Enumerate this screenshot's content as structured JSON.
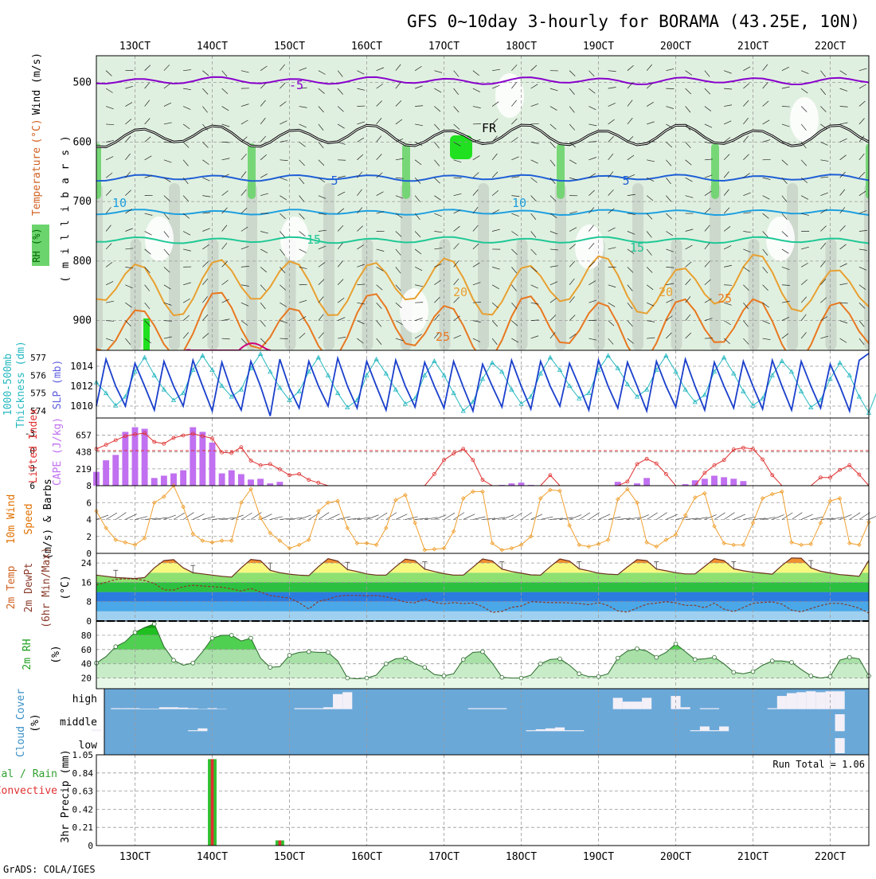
{
  "title": "GFS 0~10day 3-hourly for BORAMA (43.25E, 10N)",
  "footer": "GrADS: COLA/IGES",
  "run_total_label": "Run Total = 1.06",
  "colors": {
    "temp_purple": "#8800cc",
    "temp_blue": "#1f5fd6",
    "temp_cyan": "#1ea0e0",
    "temp_teal": "#1fc896",
    "temp_orange": "#e8a030",
    "temp_dark_orange": "#e87820",
    "temp_magenta": "#d0007a",
    "rh_light": "#e0f0e0",
    "rh_gray": "#c8d4c8",
    "rh_green": "#6cd46c",
    "rh_bright": "#20e020",
    "slp": "#1a3fcc",
    "thickness": "#26b8c0",
    "lifted_index": "#e03030",
    "cape": "#c070f0",
    "wind": "#f0a030",
    "cloud_bg": "#6aa8d8",
    "precip_total": "#30c030",
    "precip_conv": "#e03030"
  },
  "chart_data": [
    {
      "type": "contour",
      "name": "upper_air",
      "title": "Wind (m/s), Temperature (°C), RH (%)",
      "ylabel": "millibars",
      "ylabel_parts": [
        {
          "text": "Wind (m/s)",
          "color": "#000000"
        },
        {
          "text": "Temperature (°C)",
          "color": "#d06020"
        },
        {
          "text": "RH (%)",
          "color": "#30a030"
        }
      ],
      "ylabel_top": "Wind (m/s)",
      "ylabel_temp": "Temperature",
      "ylabel_unit": "(°C)",
      "ylabel_rh": "RH (%)",
      "ylabel_mb": "( m i l l i b a r s )",
      "ylim": [
        950,
        455
      ],
      "yticks": [
        500,
        600,
        700,
        800,
        900
      ],
      "contour_labels": [
        {
          "text": "-5",
          "color": "#8800cc"
        },
        {
          "text": "5",
          "color": "#1f5fd6"
        },
        {
          "text": "5",
          "color": "#1f5fd6"
        },
        {
          "text": "10",
          "color": "#1ea0e0"
        },
        {
          "text": "10",
          "color": "#1ea0e0"
        },
        {
          "text": "15",
          "color": "#1fc896"
        },
        {
          "text": "15",
          "color": "#1fc896"
        },
        {
          "text": "20",
          "color": "#e8a030"
        },
        {
          "text": "20",
          "color": "#e8a030"
        },
        {
          "text": "25",
          "color": "#e87820"
        },
        {
          "text": "25",
          "color": "#e87820"
        },
        {
          "text": "FR",
          "color": "#000000"
        }
      ],
      "isotherms": [
        {
          "temp": -5,
          "mean_p": 497,
          "amp": 8
        },
        {
          "temp": 0,
          "mean_p": 590,
          "amp": 24
        },
        {
          "temp": 5,
          "mean_p": 660,
          "amp": 7
        },
        {
          "temp": 10,
          "mean_p": 718,
          "amp": 6
        },
        {
          "temp": 15,
          "mean_p": 765,
          "amp": 7
        },
        {
          "temp": 20,
          "mean_p": 840,
          "amp": 40
        },
        {
          "temp": 25,
          "mean_p": 910,
          "amp": 45
        }
      ]
    },
    {
      "type": "line",
      "name": "slp_thickness",
      "ylabel_left": "1000-500mb Thickness (dm)",
      "ylabel_left_a": "1000-500mb",
      "ylabel_left_b": "Thickness (dm)",
      "ylabel_right": "SLP (mb)",
      "yticks_thick": [
        574,
        575,
        576,
        577
      ],
      "yticks_slp": [
        1010,
        1012,
        1014
      ],
      "thick_range": [
        573.6,
        577.4
      ],
      "slp_range": [
        1008.8,
        1015.6
      ],
      "slp": [
        1010,
        1014.7,
        1012,
        1010,
        1014.3,
        1012,
        1009.6,
        1014.5,
        1012,
        1010,
        1014.6,
        1012,
        1009.5,
        1014.4,
        1011.5,
        1009.6,
        1014.5,
        1012,
        1009,
        1014.7,
        1011.8,
        1009.8,
        1014.5,
        1012,
        1010,
        1014.8,
        1012,
        1009.8,
        1014.5,
        1012,
        1009.6,
        1014.6,
        1012,
        1009.9,
        1014.4,
        1012,
        1009.8,
        1014.5,
        1011.9,
        1009.5,
        1014.2,
        1012,
        1009.9,
        1014.6,
        1012,
        1009.7,
        1014.5,
        1012,
        1010,
        1014.3,
        1012,
        1009.6,
        1014.6,
        1012,
        1009.8,
        1014.4,
        1012,
        1009.5,
        1014.5,
        1012,
        1009.9,
        1014.7,
        1012,
        1009.6,
        1014.4,
        1012,
        1009.8,
        1014.5,
        1012,
        1009.7,
        1014.6,
        1012,
        1009.6,
        1014.5,
        1012,
        1009.8,
        1014.2,
        1012,
        1009.5,
        1014.6,
        1015.3
      ],
      "thickness": [
        575.6,
        575,
        574.3,
        574.8,
        576.2,
        577,
        576,
        575.2,
        574.6,
        575,
        576.3,
        577.1,
        576.3,
        575.4,
        574.8,
        575.2,
        576.4,
        577.2,
        576.2,
        575.3,
        574.6,
        575.1,
        576.2,
        577,
        576,
        575,
        574.2,
        574.6,
        576,
        576.9,
        576.1,
        575.2,
        574.4,
        574.7,
        576,
        576.8,
        576,
        575,
        574,
        574.5,
        575.8,
        576.7,
        576.2,
        575.2,
        574.4,
        574.8,
        576.1,
        577,
        576.3,
        575.4,
        574.7,
        575,
        576.3,
        577.1,
        576.4,
        575.5,
        574.8,
        575.2,
        576.3,
        577.1,
        576.2,
        575.2,
        574.5,
        574.9,
        576.2,
        577,
        576.1,
        575.1,
        574.3,
        574.7,
        576,
        576.8,
        576.2,
        575.1,
        574.2,
        574.6,
        575.8,
        576.7,
        576,
        574.8,
        573.9,
        575.3
      ]
    },
    {
      "type": "bar+line",
      "name": "cape_li",
      "ylabel_li": "Lifted Index",
      "ylabel_cape": "CAPE (J/kg)",
      "yticks_li": [
        -3,
        0,
        3,
        6
      ],
      "yticks_cape": [
        219,
        438,
        657
      ],
      "li_range": [
        -5.6,
        6
      ],
      "cape_max": 880,
      "cape": [
        180,
        330,
        400,
        700,
        760,
        740,
        100,
        130,
        160,
        200,
        760,
        700,
        560,
        160,
        200,
        150,
        80,
        90,
        30,
        50,
        0,
        0,
        0,
        0,
        0,
        0,
        0,
        0,
        0,
        0,
        0,
        0,
        0,
        0,
        0,
        0,
        0,
        0,
        0,
        0,
        0,
        0,
        10,
        30,
        40,
        10,
        0,
        0,
        0,
        0,
        0,
        0,
        0,
        0,
        50,
        0,
        30,
        100,
        0,
        0,
        0,
        20,
        70,
        90,
        130,
        110,
        90,
        60,
        0,
        0,
        0,
        0,
        0,
        0,
        0,
        0,
        0,
        0,
        0,
        0,
        0
      ],
      "lifted_index": [
        -0.3,
        -1,
        -1.8,
        -2.5,
        -2.8,
        -3,
        -1.5,
        -1.2,
        -2.2,
        -2.6,
        -2.9,
        -2.5,
        -2.1,
        0.3,
        0.4,
        -0.6,
        1.7,
        2.5,
        2.3,
        3.2,
        4.2,
        4,
        5,
        5.5,
        6,
        6,
        6,
        6,
        6,
        6,
        6,
        6,
        6,
        6,
        6,
        4,
        1.6,
        0.5,
        -0.3,
        1.6,
        5,
        6,
        6,
        6,
        6,
        6,
        6,
        4.2,
        6,
        6,
        6,
        6,
        6,
        6,
        6,
        5.3,
        2.3,
        1.4,
        2.2,
        4,
        6,
        6,
        6,
        3.8,
        2.5,
        1.6,
        -0.2,
        -0.5,
        -0.3,
        1.5,
        4.2,
        6,
        6,
        6,
        6,
        4.6,
        4.6,
        3.3,
        2.5,
        4.1,
        6
      ]
    },
    {
      "type": "line",
      "name": "wind10m",
      "ylabel_a": "10m Wind",
      "ylabel_b": "Speed",
      "ylabel_c": "(m/s) & Barbs",
      "yticks": [
        0,
        2,
        4,
        6,
        8
      ],
      "ylim": [
        0,
        8
      ],
      "speed": [
        5,
        3,
        1.6,
        1.3,
        1,
        1.8,
        6,
        6.7,
        8,
        5.5,
        2.3,
        1.5,
        1.3,
        1.5,
        1.5,
        6,
        7.6,
        4.2,
        2.4,
        1.5,
        0.6,
        1,
        1.6,
        5,
        6,
        6.2,
        3,
        1.2,
        1.2,
        1,
        3,
        6.3,
        6.9,
        3.6,
        0.4,
        0.5,
        0.6,
        2.6,
        6.5,
        7.3,
        7.3,
        1.2,
        0.4,
        0.6,
        1,
        2,
        6.5,
        7.5,
        7.4,
        3.3,
        1,
        0.8,
        1.1,
        1.6,
        6.4,
        7.6,
        6,
        1.3,
        0.8,
        1.6,
        2.2,
        4.5,
        6.6,
        7.1,
        3.2,
        1.2,
        1,
        1,
        3.6,
        6.5,
        7,
        7.3,
        1.3,
        1,
        1.1,
        3.6,
        6.2,
        6.5,
        1.2,
        1,
        3.7
      ]
    },
    {
      "type": "area+line",
      "name": "temp2m",
      "ylabel_a": "2m Temp",
      "ylabel_b": "2m DewPt",
      "ylabel_c": "(6hr Min/Max)",
      "ylabel_d": "(°C)",
      "yticks": [
        0,
        8,
        16,
        24
      ],
      "ylim": [
        0,
        28
      ],
      "temp": [
        19,
        18.5,
        18,
        17.8,
        17.6,
        18,
        22,
        25,
        25.4,
        22,
        20,
        19.5,
        19,
        18.5,
        18.2,
        22,
        25.5,
        25,
        21,
        20,
        19.4,
        19,
        18.8,
        22.5,
        25.8,
        24.8,
        21.3,
        20.5,
        19.5,
        19,
        19,
        22.5,
        25.6,
        25,
        21.5,
        20.5,
        19.6,
        19,
        19,
        22.3,
        25.7,
        24.9,
        21.5,
        20.5,
        19.8,
        19.1,
        19,
        22.5,
        25.7,
        24.8,
        21.6,
        20.8,
        19.8,
        19.4,
        19.2,
        22.4,
        25.4,
        25,
        21.5,
        20.8,
        20,
        19.5,
        19.5,
        22.6,
        25.8,
        25,
        21.6,
        20.8,
        20.2,
        19.8,
        19.4,
        23,
        26.1,
        26,
        22,
        20.6,
        19.9,
        19.2,
        18.9,
        18.5,
        25.1
      ],
      "dewpoint": [
        15,
        16,
        17.2,
        17.5,
        17.4,
        16.8,
        15.5,
        12.9,
        12.8,
        14.2,
        14.8,
        14.5,
        14.2,
        14,
        13.3,
        12.4,
        13.5,
        12,
        10.5,
        10,
        9.5,
        7.6,
        5,
        8.1,
        9,
        10.3,
        10.6,
        10.6,
        10.4,
        10.6,
        10,
        9,
        7.8,
        7.5,
        9.2,
        7.7,
        7.1,
        7.6,
        7.2,
        7.5,
        6,
        3.6,
        4,
        5.7,
        6.2,
        8,
        7.8,
        7.6,
        7.6,
        7.5,
        7.2,
        6.8,
        7.6,
        6.4,
        4.2,
        3.7,
        5.4,
        7,
        7.4,
        8,
        7.5,
        6.5,
        6.5,
        5.5,
        7.4,
        4.9,
        3.9,
        5.6,
        7.3,
        7.7,
        7.9,
        7,
        4.5,
        3.8,
        5.2,
        6.4,
        7.3,
        7.3,
        6.5,
        5.3,
        3.3
      ],
      "bands": [
        {
          "min": 0,
          "color": "#9fd0f0"
        },
        {
          "min": 4,
          "color": "#4aa8e8"
        },
        {
          "min": 8,
          "color": "#2c7ce0"
        },
        {
          "min": 12,
          "color": "#2cc040"
        },
        {
          "min": 16,
          "color": "#8ee070"
        },
        {
          "min": 20,
          "color": "#f8f880"
        },
        {
          "min": 24,
          "color": "#f09030"
        }
      ]
    },
    {
      "type": "area",
      "name": "rh2m",
      "ylabel_a": "2m RH",
      "ylabel_b": "(%)",
      "yticks": [
        20,
        40,
        60,
        80
      ],
      "ylim": [
        5,
        100
      ],
      "rh": [
        41,
        50,
        64,
        71,
        84,
        91,
        96,
        64,
        45,
        38,
        41,
        57,
        76,
        80,
        80,
        72,
        76,
        48,
        35,
        36,
        52,
        56,
        57,
        56,
        56,
        44,
        20,
        19,
        20,
        24,
        40,
        47,
        48,
        40,
        35,
        25,
        23,
        26,
        46,
        56,
        57,
        41,
        21,
        20,
        20,
        24,
        40,
        46,
        47,
        38,
        26,
        22,
        22,
        26,
        48,
        58,
        61,
        58,
        49,
        56,
        68,
        57,
        46,
        47,
        49,
        40,
        28,
        26,
        29,
        38,
        44,
        44,
        42,
        32,
        23,
        20,
        22,
        45,
        49,
        47,
        23
      ],
      "bands": [
        {
          "min": 0,
          "color": "#e8f8e8"
        },
        {
          "min": 20,
          "color": "#c8ecc8"
        },
        {
          "min": 40,
          "color": "#a8e0a8"
        },
        {
          "min": 60,
          "color": "#50d050"
        },
        {
          "min": 80,
          "color": "#20c020"
        },
        {
          "min": 90,
          "color": "#10a010"
        }
      ]
    },
    {
      "type": "bar",
      "name": "cloud",
      "ylabel_a": "Cloud Cover",
      "ylabel_b": "(%)",
      "level_labels": [
        "high",
        "middle",
        "low"
      ],
      "high": [
        0,
        0,
        5,
        5,
        5,
        3,
        3,
        10,
        10,
        8,
        5,
        2,
        5,
        2,
        0,
        0,
        0,
        0,
        0,
        0,
        0,
        5,
        5,
        5,
        10,
        80,
        90,
        0,
        0,
        0,
        0,
        0,
        0,
        0,
        0,
        0,
        0,
        0,
        0,
        5,
        5,
        5,
        5,
        0,
        0,
        0,
        0,
        0,
        0,
        0,
        0,
        0,
        0,
        0,
        60,
        40,
        40,
        60,
        0,
        0,
        70,
        10,
        0,
        5,
        5,
        0,
        0,
        0,
        0,
        0,
        5,
        70,
        85,
        90,
        95,
        90,
        95,
        95,
        0,
        0,
        0
      ],
      "middle": [
        10,
        0,
        0,
        0,
        0,
        0,
        0,
        0,
        0,
        0,
        5,
        15,
        0,
        0,
        0,
        0,
        0,
        0,
        0,
        0,
        0,
        0,
        0,
        0,
        0,
        0,
        0,
        0,
        0,
        0,
        0,
        0,
        0,
        0,
        0,
        0,
        0,
        0,
        0,
        0,
        0,
        0,
        0,
        0,
        0,
        5,
        10,
        15,
        20,
        5,
        5,
        0,
        0,
        0,
        0,
        0,
        0,
        0,
        0,
        0,
        0,
        0,
        5,
        25,
        5,
        25,
        0,
        0,
        0,
        0,
        0,
        0,
        0,
        0,
        0,
        0,
        0,
        90,
        0,
        0,
        0
      ],
      "low": [
        0,
        0,
        0,
        0,
        0,
        0,
        0,
        0,
        0,
        0,
        0,
        0,
        0,
        0,
        0,
        0,
        0,
        0,
        0,
        0,
        0,
        0,
        0,
        0,
        0,
        0,
        0,
        0,
        0,
        0,
        0,
        0,
        0,
        0,
        0,
        0,
        0,
        0,
        0,
        0,
        0,
        0,
        0,
        0,
        0,
        0,
        0,
        0,
        0,
        0,
        0,
        0,
        0,
        0,
        0,
        0,
        0,
        0,
        0,
        0,
        0,
        0,
        0,
        0,
        0,
        0,
        0,
        0,
        0,
        0,
        0,
        0,
        0,
        0,
        0,
        0,
        0,
        80,
        0,
        0,
        0
      ]
    },
    {
      "type": "bar",
      "name": "precip",
      "ylabel_a": "Total / Rain",
      "ylabel_b": "Convective",
      "ylabel_c": "3hr Precip (mm)",
      "yticks": [
        0,
        0.21,
        0.42,
        0.63,
        0.84,
        1.05
      ],
      "ytick_labels": [
        "0",
        "0.21",
        "0.42",
        "0.63",
        "0.84",
        "1.05"
      ],
      "ylim": [
        0,
        1.05
      ],
      "total": [
        0,
        0,
        0,
        0,
        0,
        0,
        0,
        0,
        0,
        0,
        0,
        0,
        1.0,
        0,
        0,
        0,
        0,
        0,
        0,
        0.06,
        0,
        0,
        0,
        0,
        0,
        0,
        0,
        0,
        0,
        0,
        0,
        0,
        0,
        0,
        0,
        0,
        0,
        0,
        0,
        0,
        0,
        0,
        0,
        0,
        0,
        0,
        0,
        0,
        0,
        0,
        0,
        0,
        0,
        0,
        0,
        0,
        0,
        0,
        0,
        0,
        0,
        0,
        0,
        0,
        0,
        0,
        0,
        0,
        0,
        0,
        0,
        0,
        0,
        0,
        0,
        0,
        0,
        0,
        0,
        0,
        0
      ],
      "convective": [
        0,
        0,
        0,
        0,
        0,
        0,
        0,
        0,
        0,
        0,
        0,
        0,
        1.0,
        0,
        0,
        0,
        0,
        0,
        0,
        0.06,
        0,
        0,
        0,
        0,
        0,
        0,
        0,
        0,
        0,
        0,
        0,
        0,
        0,
        0,
        0,
        0,
        0,
        0,
        0,
        0,
        0,
        0,
        0,
        0,
        0,
        0,
        0,
        0,
        0,
        0,
        0,
        0,
        0,
        0,
        0,
        0,
        0,
        0,
        0,
        0,
        0,
        0,
        0,
        0,
        0,
        0,
        0,
        0,
        0,
        0,
        0,
        0,
        0,
        0,
        0,
        0,
        0,
        0,
        0,
        0,
        0
      ]
    }
  ],
  "time_axis": {
    "start_hour_offset": 0,
    "steps": 81,
    "labels": [
      "13OCT",
      "14OCT",
      "15OCT",
      "16OCT",
      "17OCT",
      "18OCT",
      "19OCT",
      "20OCT",
      "21OCT",
      "22OCT"
    ]
  }
}
